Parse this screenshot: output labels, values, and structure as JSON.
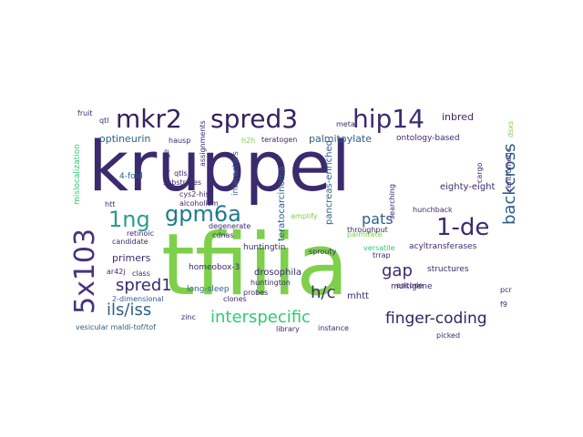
{
  "words": [
    {
      "text": "kruppel",
      "color": "#3b2a6e"
    },
    {
      "text": "tfiiia",
      "color": "#7ed04b"
    },
    {
      "text": "5x103",
      "color": "#46337e"
    },
    {
      "text": "mkr2",
      "color": "#35215f"
    },
    {
      "text": "spred3",
      "color": "#35215f"
    },
    {
      "text": "hip14",
      "color": "#3b2a6e"
    },
    {
      "text": "1ng",
      "color": "#2a9d8f"
    },
    {
      "text": "gpm6a",
      "color": "#1f7a8c"
    },
    {
      "text": "1-de",
      "color": "#3b2a6e"
    },
    {
      "text": "backcross",
      "color": "#2c5f8a"
    },
    {
      "text": "pats",
      "color": "#2c5f8a"
    },
    {
      "text": "gap",
      "color": "#3b2a6e"
    },
    {
      "text": "spred1",
      "color": "#3b2a6e"
    },
    {
      "text": "h/c",
      "color": "#3b2a6e"
    },
    {
      "text": "ils/iss",
      "color": "#2c5f8a"
    },
    {
      "text": "interspecific",
      "color": "#2ecc71"
    },
    {
      "text": "finger-coding",
      "color": "#35215f"
    },
    {
      "text": "inbred",
      "color": "#3b2a6e"
    },
    {
      "text": "optineurin",
      "color": "#2c5f8a"
    },
    {
      "text": "palmitoylate",
      "color": "#2c5f8a"
    },
    {
      "text": "ontology-based",
      "color": "#3b2a6e"
    },
    {
      "text": "eighty-eight",
      "color": "#3b2a6e"
    },
    {
      "text": "primers",
      "color": "#3b2a6e"
    },
    {
      "text": "acyltransferases",
      "color": "#3b2a6e"
    },
    {
      "text": "hunchback",
      "color": "#3b2a6e"
    },
    {
      "text": "pancreas-enriched",
      "color": "#2c5f8a"
    },
    {
      "text": "teratocarcinoma",
      "color": "#2c5f8a"
    },
    {
      "text": "interactors",
      "color": "#2c5f8a"
    },
    {
      "text": "huntingtin",
      "color": "#3b2a6e"
    },
    {
      "text": "drosophila",
      "color": "#3b2a6e"
    },
    {
      "text": "mhtt",
      "color": "#3b2a6e"
    },
    {
      "text": "multigene",
      "color": "#3b2a6e"
    },
    {
      "text": "structures",
      "color": "#3b2a6e"
    },
    {
      "text": "homeobox-3",
      "color": "#3b2a6e"
    },
    {
      "text": "long-sleep",
      "color": "#2c5f8a"
    },
    {
      "text": "2-dimensional",
      "color": "#2c5f8a"
    },
    {
      "text": "vesicular maldi-tof/tof",
      "color": "#2c5f8a"
    },
    {
      "text": "teratogen",
      "color": "#3b2a6e"
    },
    {
      "text": "substrates",
      "color": "#3b2a6e"
    },
    {
      "text": "cys2-his2",
      "color": "#3b2a6e"
    },
    {
      "text": "hausp",
      "color": "#3b2a6e"
    },
    {
      "text": "qtl",
      "color": "#3b2a6e"
    },
    {
      "text": "fruit",
      "color": "#3b2a6e"
    },
    {
      "text": "4-fold",
      "color": "#2c5f8a"
    },
    {
      "text": "htt",
      "color": "#3b2a6e"
    },
    {
      "text": "retinoic",
      "color": "#3b2a6e"
    },
    {
      "text": "candidate",
      "color": "#3b2a6e"
    },
    {
      "text": "ar42j",
      "color": "#3b2a6e"
    },
    {
      "text": "class",
      "color": "#3b2a6e"
    },
    {
      "text": "zinc",
      "color": "#3b2a6e"
    },
    {
      "text": "clones",
      "color": "#3b2a6e"
    },
    {
      "text": "huntington",
      "color": "#3b2a6e"
    },
    {
      "text": "probes",
      "color": "#3b2a6e"
    },
    {
      "text": "library",
      "color": "#3b2a6e"
    },
    {
      "text": "instance",
      "color": "#3b2a6e"
    },
    {
      "text": "picked",
      "color": "#3b2a6e"
    },
    {
      "text": "encode",
      "color": "#3b2a6e"
    },
    {
      "text": "trrap",
      "color": "#3b2a6e"
    },
    {
      "text": "versatile",
      "color": "#2ecc71"
    },
    {
      "text": "sprouty",
      "color": "#3b2a6e"
    },
    {
      "text": "palmitate",
      "color": "#7ed04b"
    },
    {
      "text": "throughput",
      "color": "#3b2a6e"
    },
    {
      "text": "amplify",
      "color": "#7ed04b"
    },
    {
      "text": "degenerate",
      "color": "#3b2a6e"
    },
    {
      "text": "cdnas",
      "color": "#3b2a6e"
    },
    {
      "text": "alcoholism",
      "color": "#3b2a6e"
    },
    {
      "text": "qtls",
      "color": "#3b2a6e"
    },
    {
      "text": "assignments",
      "color": "#3b2a6e"
    },
    {
      "text": "metal",
      "color": "#3b2a6e"
    },
    {
      "text": "cargo",
      "color": "#3b2a6e"
    },
    {
      "text": "searching",
      "color": "#3b2a6e"
    },
    {
      "text": "centromeric",
      "color": "#3b2a6e"
    },
    {
      "text": "mislocalization",
      "color": "#2ecc71"
    },
    {
      "text": "phage",
      "color": "#3b2a6e"
    },
    {
      "text": "pcr",
      "color": "#3b2a6e"
    },
    {
      "text": "f9",
      "color": "#3b2a6e"
    },
    {
      "text": "h2h",
      "color": "#7ed04b"
    },
    {
      "text": "dsxs",
      "color": "#7ed04b"
    }
  ]
}
